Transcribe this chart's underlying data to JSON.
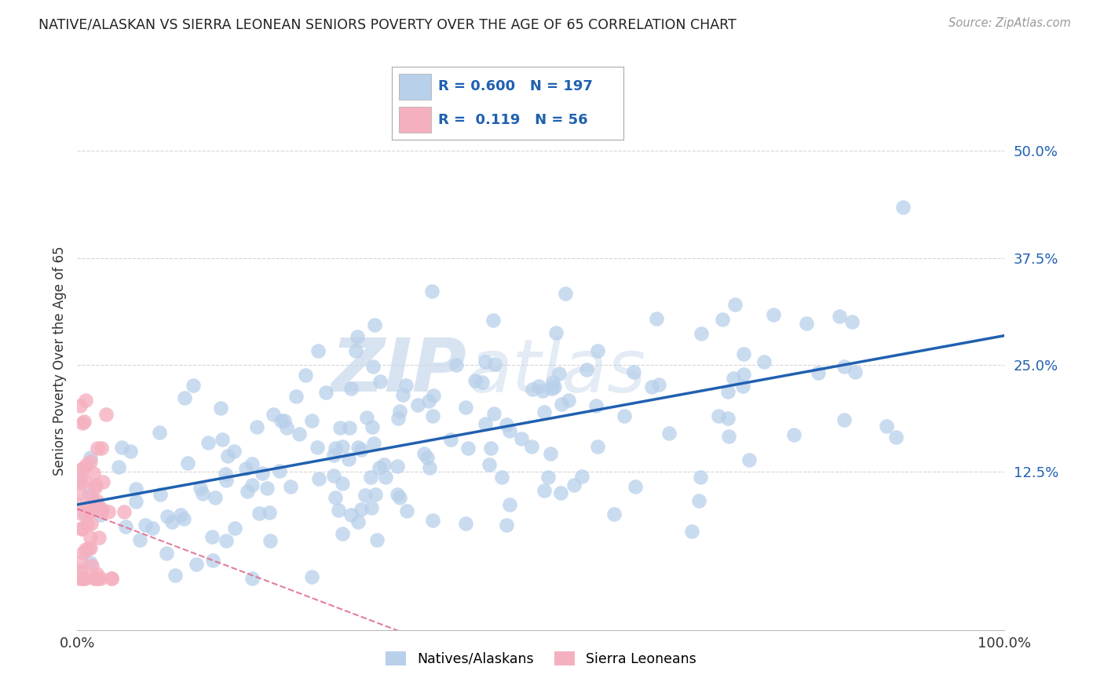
{
  "title": "NATIVE/ALASKAN VS SIERRA LEONEAN SENIORS POVERTY OVER THE AGE OF 65 CORRELATION CHART",
  "source": "Source: ZipAtlas.com",
  "ylabel": "Seniors Poverty Over the Age of 65",
  "ytick_labels": [
    "12.5%",
    "25.0%",
    "37.5%",
    "50.0%"
  ],
  "ytick_values": [
    0.125,
    0.25,
    0.375,
    0.5
  ],
  "xlim": [
    0,
    1.0
  ],
  "ylim": [
    -0.06,
    0.57
  ],
  "native_R": 0.6,
  "native_N": 197,
  "sierra_R": 0.119,
  "sierra_N": 56,
  "native_color": "#b8d0ea",
  "native_line_color": "#2060b0",
  "sierra_color": "#f5b0c0",
  "sierra_line_color": "#e07090",
  "legend_label_native": "Natives/Alaskans",
  "legend_label_sierra": "Sierra Leoneans",
  "watermark_zip": "ZIP",
  "watermark_atlas": "atlas",
  "background_color": "#ffffff",
  "grid_color": "#cccccc",
  "title_color": "#222222",
  "source_color": "#999999",
  "tick_color": "#2060b0",
  "legend_border_color": "#aaaaaa"
}
